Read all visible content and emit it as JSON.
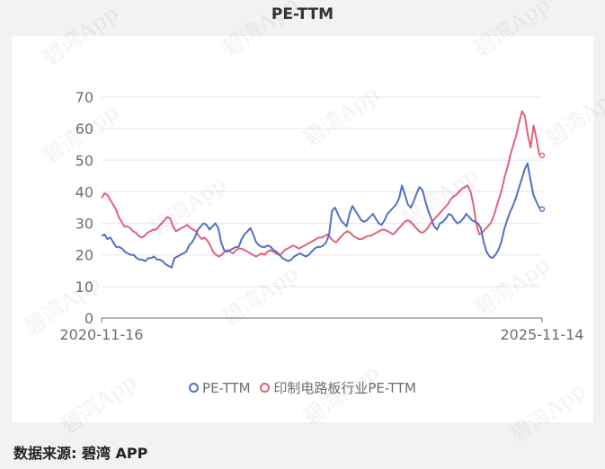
{
  "title": "PE-TTM",
  "source": "数据来源: 碧湾 APP",
  "watermark": "碧湾App",
  "colors": {
    "pe": "#5470c6",
    "industry": "#e0637b",
    "grid": "#e6e6ef",
    "axis": "#6e6e6e"
  },
  "chart_data": {
    "type": "line",
    "title": "PE-TTM",
    "x_labels": [
      "2020-11-16",
      "2025-11-14"
    ],
    "ylim": [
      0,
      70
    ],
    "y_ticks": [
      0,
      10,
      20,
      30,
      40,
      50,
      60,
      70
    ],
    "grid": true,
    "legend_position": "bottom",
    "series": [
      {
        "name": "PE-TTM",
        "color": "#5470c6",
        "values": [
          26.0,
          26.5,
          25.0,
          25.5,
          24.0,
          22.5,
          22.5,
          22.0,
          21.0,
          20.5,
          20.0,
          20.0,
          19.0,
          18.5,
          18.5,
          18.0,
          19.0,
          19.0,
          19.5,
          18.5,
          18.5,
          18.0,
          17.0,
          16.5,
          16.0,
          19.0,
          19.5,
          20.0,
          20.5,
          21.0,
          23.0,
          24.0,
          25.5,
          28.0,
          29.0,
          30.0,
          29.5,
          28.0,
          29.0,
          30.0,
          28.5,
          24.0,
          21.5,
          21.0,
          21.5,
          22.0,
          22.5,
          22.5,
          25.0,
          26.5,
          27.5,
          28.5,
          26.5,
          24.0,
          23.0,
          22.5,
          22.5,
          23.0,
          22.5,
          21.5,
          21.0,
          20.0,
          19.0,
          18.5,
          18.0,
          18.5,
          19.5,
          20.0,
          20.5,
          20.0,
          19.5,
          20.0,
          21.0,
          22.0,
          22.5,
          22.5,
          23.0,
          24.0,
          26.5,
          34.0,
          35.0,
          33.0,
          31.0,
          30.0,
          29.0,
          33.0,
          35.5,
          34.0,
          32.5,
          31.0,
          30.5,
          31.0,
          32.0,
          33.0,
          31.5,
          30.0,
          29.5,
          31.0,
          33.0,
          34.0,
          35.0,
          36.0,
          38.0,
          42.0,
          39.0,
          36.0,
          35.0,
          37.0,
          39.5,
          41.5,
          40.5,
          37.0,
          34.0,
          31.5,
          29.0,
          28.0,
          30.0,
          30.5,
          31.5,
          33.0,
          32.5,
          31.0,
          30.0,
          30.5,
          31.5,
          33.0,
          32.0,
          31.0,
          30.5,
          30.0,
          28.5,
          24.0,
          21.0,
          19.5,
          19.0,
          20.0,
          21.5,
          24.0,
          28.0,
          31.0,
          33.5,
          35.5,
          38.0,
          41.0,
          44.0,
          47.0,
          49.0,
          44.0,
          39.0,
          37.0,
          35.0,
          34.5
        ]
      },
      {
        "name": "印制电路板行业PE-TTM",
        "color": "#e0637b",
        "values": [
          38.0,
          39.5,
          39.0,
          37.5,
          36.0,
          34.5,
          32.0,
          30.5,
          29.0,
          29.0,
          28.5,
          27.5,
          27.0,
          26.0,
          25.5,
          26.0,
          27.0,
          27.5,
          28.0,
          28.0,
          29.0,
          30.0,
          31.0,
          32.0,
          31.5,
          29.0,
          27.5,
          28.0,
          28.5,
          29.0,
          29.5,
          28.5,
          28.0,
          27.5,
          26.0,
          25.0,
          25.5,
          24.5,
          23.0,
          21.0,
          20.0,
          19.5,
          20.0,
          21.0,
          21.5,
          21.0,
          20.5,
          21.5,
          22.0,
          22.0,
          21.5,
          21.0,
          20.5,
          20.0,
          19.5,
          20.0,
          20.5,
          20.0,
          21.0,
          21.5,
          21.0,
          20.5,
          20.0,
          20.5,
          21.5,
          22.0,
          22.5,
          23.0,
          22.5,
          22.0,
          22.5,
          23.0,
          23.5,
          24.0,
          24.5,
          25.0,
          25.5,
          25.5,
          26.0,
          26.5,
          25.5,
          24.5,
          24.0,
          25.0,
          26.0,
          27.0,
          27.5,
          27.0,
          26.0,
          25.5,
          25.0,
          25.0,
          25.5,
          26.0,
          26.0,
          26.5,
          27.0,
          27.5,
          28.0,
          28.0,
          27.5,
          27.0,
          26.5,
          27.5,
          28.5,
          29.5,
          30.5,
          31.0,
          30.5,
          29.5,
          28.5,
          27.5,
          27.0,
          27.5,
          28.5,
          30.0,
          31.0,
          32.0,
          33.0,
          34.0,
          35.0,
          36.0,
          37.5,
          38.5,
          39.0,
          40.0,
          41.0,
          41.5,
          42.0,
          40.0,
          36.0,
          30.0,
          26.5,
          27.0,
          28.0,
          29.0,
          30.0,
          32.0,
          35.0,
          38.0,
          41.0,
          45.0,
          48.0,
          52.0,
          55.0,
          58.0,
          62.0,
          65.5,
          64.0,
          58.0,
          54.0,
          61.0,
          57.0,
          52.0,
          51.5
        ]
      }
    ]
  }
}
